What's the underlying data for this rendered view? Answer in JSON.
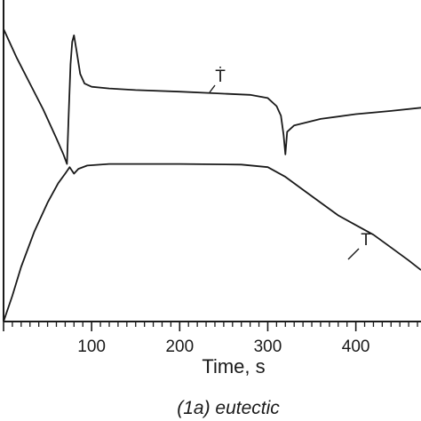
{
  "chart_data": {
    "type": "line",
    "xlabel": "Time,  s",
    "caption": "(1a) eutectic",
    "x_ticks": [
      "100",
      "200",
      "300",
      "400"
    ],
    "xlim": [
      0,
      474
    ],
    "ylim": [
      0,
      100
    ],
    "grid": false,
    "series": [
      {
        "name": "Ṫ",
        "points": [
          [
            0,
            91
          ],
          [
            15,
            82
          ],
          [
            30,
            74
          ],
          [
            45,
            66
          ],
          [
            60,
            57
          ],
          [
            68,
            52
          ],
          [
            72,
            49
          ],
          [
            74,
            65
          ],
          [
            76,
            80
          ],
          [
            78,
            87
          ],
          [
            80,
            89
          ],
          [
            83,
            84
          ],
          [
            87,
            77
          ],
          [
            92,
            74
          ],
          [
            100,
            73
          ],
          [
            120,
            72.5
          ],
          [
            150,
            72
          ],
          [
            200,
            71.5
          ],
          [
            240,
            71
          ],
          [
            280,
            70.5
          ],
          [
            300,
            69.5
          ],
          [
            310,
            67
          ],
          [
            315,
            64
          ],
          [
            318,
            58
          ],
          [
            320,
            52
          ],
          [
            322,
            59
          ],
          [
            330,
            61
          ],
          [
            360,
            63
          ],
          [
            400,
            64.5
          ],
          [
            440,
            65.5
          ],
          [
            474,
            66.5
          ]
        ]
      },
      {
        "name": "T",
        "points": [
          [
            0,
            0
          ],
          [
            10,
            8
          ],
          [
            20,
            17
          ],
          [
            35,
            28
          ],
          [
            50,
            37
          ],
          [
            62,
            43
          ],
          [
            70,
            46
          ],
          [
            75,
            48
          ],
          [
            80,
            46
          ],
          [
            85,
            47.5
          ],
          [
            95,
            48.5
          ],
          [
            120,
            49
          ],
          [
            200,
            49
          ],
          [
            270,
            48.8
          ],
          [
            300,
            48
          ],
          [
            320,
            45
          ],
          [
            340,
            41
          ],
          [
            360,
            37
          ],
          [
            380,
            33
          ],
          [
            400,
            30
          ],
          [
            420,
            27
          ],
          [
            440,
            23
          ],
          [
            460,
            19
          ],
          [
            474,
            16
          ]
        ]
      }
    ]
  }
}
